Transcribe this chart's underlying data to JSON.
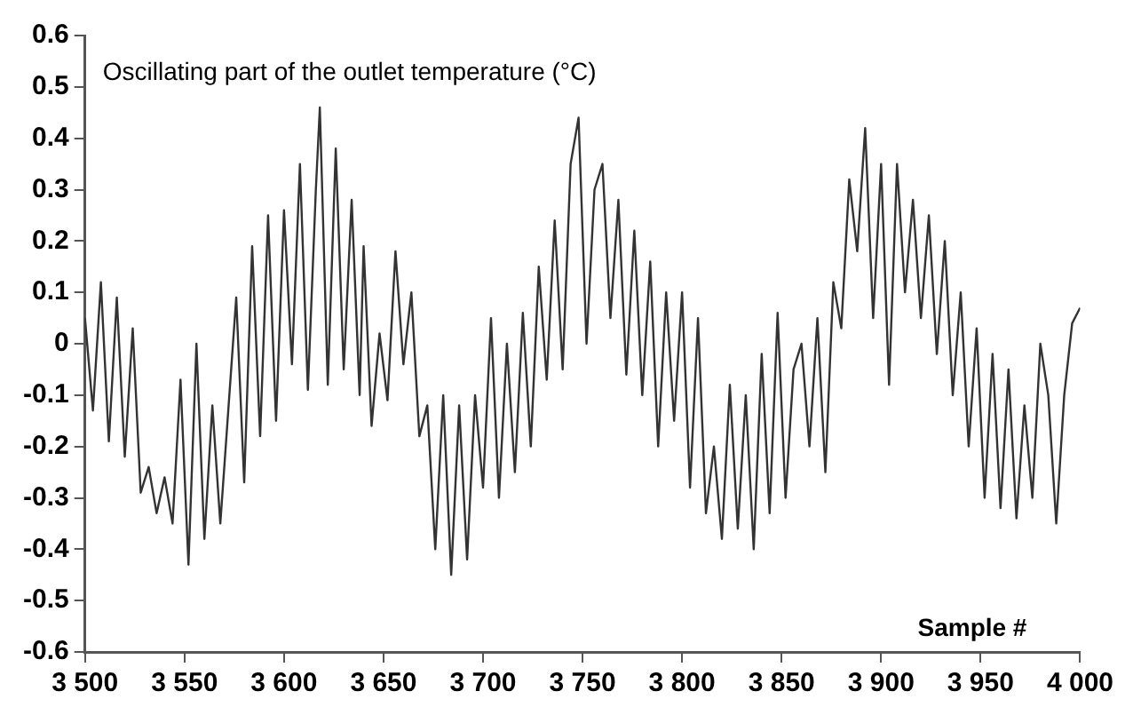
{
  "chart_data": {
    "type": "line",
    "xlabel": "Sample #",
    "ylabel": "Oscillating part of the outlet temperature (°C)",
    "x": [
      3500,
      3504,
      3508,
      3512,
      3516,
      3520,
      3524,
      3528,
      3532,
      3536,
      3540,
      3544,
      3548,
      3552,
      3556,
      3560,
      3564,
      3568,
      3572,
      3576,
      3580,
      3584,
      3588,
      3592,
      3596,
      3600,
      3604,
      3608,
      3612,
      3616,
      3618,
      3622,
      3626,
      3630,
      3634,
      3638,
      3640,
      3644,
      3648,
      3652,
      3656,
      3660,
      3664,
      3668,
      3672,
      3676,
      3680,
      3684,
      3688,
      3692,
      3696,
      3700,
      3704,
      3708,
      3712,
      3716,
      3720,
      3724,
      3728,
      3732,
      3736,
      3740,
      3744,
      3748,
      3752,
      3756,
      3760,
      3764,
      3768,
      3772,
      3776,
      3780,
      3784,
      3788,
      3792,
      3796,
      3800,
      3804,
      3808,
      3812,
      3816,
      3820,
      3824,
      3828,
      3832,
      3836,
      3840,
      3844,
      3848,
      3852,
      3856,
      3860,
      3864,
      3868,
      3872,
      3876,
      3880,
      3884,
      3888,
      3892,
      3896,
      3900,
      3904,
      3908,
      3912,
      3916,
      3920,
      3924,
      3928,
      3932,
      3936,
      3940,
      3944,
      3948,
      3952,
      3956,
      3960,
      3964,
      3968,
      3972,
      3976,
      3980,
      3984,
      3988,
      3992,
      3996,
      4000
    ],
    "series": [
      {
        "color": "#333333",
        "values": [
          0.05,
          -0.13,
          0.12,
          -0.19,
          0.09,
          -0.22,
          0.03,
          -0.29,
          -0.24,
          -0.33,
          -0.26,
          -0.35,
          -0.07,
          -0.43,
          0.0,
          -0.38,
          -0.12,
          -0.35,
          -0.13,
          0.09,
          -0.27,
          0.19,
          -0.18,
          0.25,
          -0.15,
          0.26,
          -0.04,
          0.35,
          -0.09,
          0.3,
          0.46,
          -0.08,
          0.38,
          -0.05,
          0.28,
          -0.1,
          0.19,
          -0.16,
          0.02,
          -0.11,
          0.18,
          -0.04,
          0.1,
          -0.18,
          -0.12,
          -0.4,
          -0.1,
          -0.45,
          -0.12,
          -0.42,
          -0.1,
          -0.28,
          0.05,
          -0.3,
          0.0,
          -0.25,
          0.06,
          -0.2,
          0.15,
          -0.07,
          0.24,
          -0.05,
          0.35,
          0.44,
          0.0,
          0.3,
          0.35,
          0.05,
          0.28,
          -0.06,
          0.22,
          -0.1,
          0.16,
          -0.2,
          0.1,
          -0.15,
          0.1,
          -0.28,
          0.05,
          -0.33,
          -0.2,
          -0.38,
          -0.08,
          -0.36,
          -0.1,
          -0.4,
          -0.02,
          -0.33,
          0.06,
          -0.3,
          -0.05,
          0.0,
          -0.2,
          0.05,
          -0.25,
          0.12,
          0.03,
          0.32,
          0.18,
          0.42,
          0.05,
          0.35,
          -0.08,
          0.35,
          0.1,
          0.28,
          0.05,
          0.25,
          -0.02,
          0.2,
          -0.1,
          0.1,
          -0.2,
          0.03,
          -0.3,
          -0.02,
          -0.32,
          -0.05,
          -0.34,
          -0.12,
          -0.3,
          0.0,
          -0.1,
          -0.35,
          -0.1,
          0.04,
          0.07
        ]
      }
    ],
    "xlim": [
      3500,
      4000
    ],
    "xticks": [
      {
        "value": 3500,
        "label": "3 500"
      },
      {
        "value": 3550,
        "label": "3 550"
      },
      {
        "value": 3600,
        "label": "3 600"
      },
      {
        "value": 3650,
        "label": "3 650"
      },
      {
        "value": 3700,
        "label": "3 700"
      },
      {
        "value": 3750,
        "label": "3 750"
      },
      {
        "value": 3800,
        "label": "3 800"
      },
      {
        "value": 3850,
        "label": "3 850"
      },
      {
        "value": 3900,
        "label": "3 900"
      },
      {
        "value": 3950,
        "label": "3 950"
      },
      {
        "value": 4000,
        "label": "4 000"
      }
    ],
    "ylim": [
      -0.6,
      0.6
    ],
    "yticks": [
      -0.6,
      -0.5,
      -0.4,
      -0.3,
      -0.2,
      -0.1,
      0,
      0.1,
      0.2,
      0.3,
      0.4,
      0.5,
      0.6
    ],
    "grid": false,
    "legend": false,
    "marker": "none",
    "line_style": "solid"
  }
}
